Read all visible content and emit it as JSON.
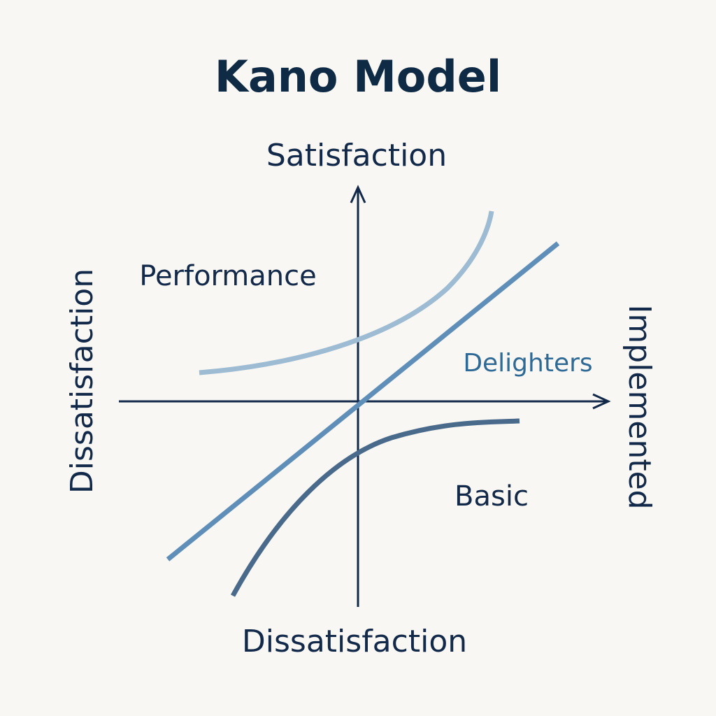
{
  "header": {
    "title": "Kano Model"
  },
  "axes": {
    "top": "Satisfaction",
    "bottom": "Dissatisfaction",
    "left": "Dissatisfaction",
    "right": "Implemented"
  },
  "curves": [
    {
      "label": "Performance"
    },
    {
      "label": "Delighters"
    },
    {
      "label": "Basic"
    }
  ]
}
